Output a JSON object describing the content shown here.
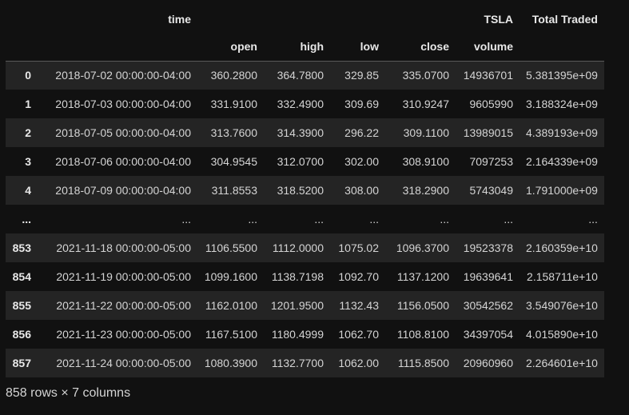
{
  "table": {
    "top_headers": [
      "",
      "time",
      "",
      "",
      "",
      "",
      "TSLA",
      "Total Traded"
    ],
    "sub_headers": [
      "",
      "",
      "open",
      "high",
      "low",
      "close",
      "volume",
      ""
    ],
    "rows": [
      [
        "0",
        "2018-07-02 00:00:00-04:00",
        "360.2800",
        "364.7800",
        "329.85",
        "335.0700",
        "14936701",
        "5.381395e+09"
      ],
      [
        "1",
        "2018-07-03 00:00:00-04:00",
        "331.9100",
        "332.4900",
        "309.69",
        "310.9247",
        "9605990",
        "3.188324e+09"
      ],
      [
        "2",
        "2018-07-05 00:00:00-04:00",
        "313.7600",
        "314.3900",
        "296.22",
        "309.1100",
        "13989015",
        "4.389193e+09"
      ],
      [
        "3",
        "2018-07-06 00:00:00-04:00",
        "304.9545",
        "312.0700",
        "302.00",
        "308.9100",
        "7097253",
        "2.164339e+09"
      ],
      [
        "4",
        "2018-07-09 00:00:00-04:00",
        "311.8553",
        "318.5200",
        "308.00",
        "318.2900",
        "5743049",
        "1.791000e+09"
      ],
      [
        "...",
        "...",
        "...",
        "...",
        "...",
        "...",
        "...",
        "..."
      ],
      [
        "853",
        "2021-11-18 00:00:00-05:00",
        "1106.5500",
        "1112.0000",
        "1075.02",
        "1096.3700",
        "19523378",
        "2.160359e+10"
      ],
      [
        "854",
        "2021-11-19 00:00:00-05:00",
        "1099.1600",
        "1138.7198",
        "1092.70",
        "1137.1200",
        "19639641",
        "2.158711e+10"
      ],
      [
        "855",
        "2021-11-22 00:00:00-05:00",
        "1162.0100",
        "1201.9500",
        "1132.43",
        "1156.0500",
        "30542562",
        "3.549076e+10"
      ],
      [
        "856",
        "2021-11-23 00:00:00-05:00",
        "1167.5100",
        "1180.4999",
        "1062.70",
        "1108.8100",
        "34397054",
        "4.015890e+10"
      ],
      [
        "857",
        "2021-11-24 00:00:00-05:00",
        "1080.3900",
        "1132.7700",
        "1062.00",
        "1115.8500",
        "20960960",
        "2.264601e+10"
      ]
    ]
  },
  "summary": "858 rows × 7 columns",
  "colors": {
    "background": "#111111",
    "row_stripe": "#242424",
    "text": "#d4d4d4"
  }
}
